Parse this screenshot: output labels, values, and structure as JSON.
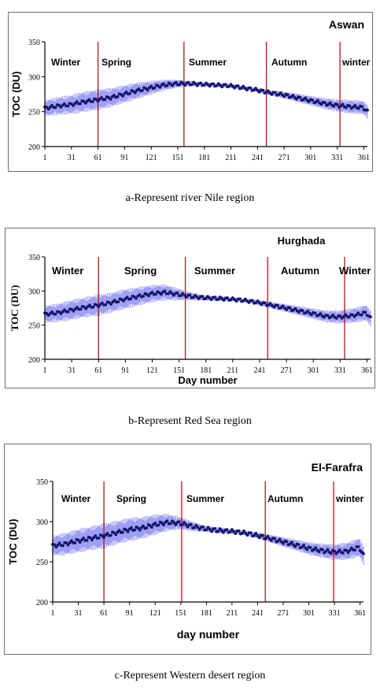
{
  "captions": {
    "a": "a-Represent river Nile region",
    "b": "b-Represent Red Sea region",
    "c": "c-Represent Western desert region"
  },
  "colors": {
    "error_band": "#8c8cf2",
    "mean_points": "#14146b",
    "season_lines": "#b01818",
    "axis": "#000000"
  },
  "chart_data": [
    {
      "type": "line",
      "title": "Aswan",
      "xlabel": "",
      "ylabel": "TOC (DU)",
      "xlim": [
        1,
        365
      ],
      "ylim": [
        200,
        350
      ],
      "x_ticks": [
        1,
        31,
        61,
        91,
        121,
        151,
        181,
        211,
        241,
        271,
        301,
        331,
        361
      ],
      "y_ticks": [
        200,
        250,
        300,
        350
      ],
      "season_boundaries": [
        61,
        158,
        251,
        334
      ],
      "seasons": [
        "Winter",
        "Spring",
        "Summer",
        "Autumn",
        "winter"
      ],
      "series": [
        {
          "x": [
            1,
            15,
            30,
            45,
            60,
            75,
            90,
            105,
            120,
            135,
            150,
            165,
            180,
            195,
            210,
            225,
            240,
            255,
            270,
            285,
            300,
            315,
            330,
            345,
            360,
            365
          ],
          "y": [
            255,
            258,
            260,
            264,
            267,
            270,
            275,
            280,
            284,
            288,
            290,
            290,
            289,
            288,
            287,
            284,
            281,
            277,
            274,
            270,
            266,
            262,
            259,
            257,
            256,
            250
          ],
          "error": [
            12,
            13,
            14,
            15,
            15,
            14,
            13,
            12,
            10,
            8,
            6,
            4,
            3,
            3,
            3,
            3,
            3,
            4,
            5,
            6,
            7,
            8,
            9,
            10,
            10,
            10
          ]
        }
      ]
    },
    {
      "type": "line",
      "title": "Hurghada",
      "xlabel": "Day number",
      "ylabel": "TOC (DU)",
      "xlim": [
        1,
        365
      ],
      "ylim": [
        200,
        350
      ],
      "x_ticks": [
        1,
        31,
        61,
        91,
        121,
        151,
        181,
        211,
        241,
        271,
        301,
        331,
        361
      ],
      "y_ticks": [
        200,
        250,
        300,
        350
      ],
      "season_boundaries": [
        61,
        158,
        250,
        336
      ],
      "seasons": [
        "Winter",
        "Spring",
        "Summer",
        "Autumn",
        "Winter"
      ],
      "series": [
        {
          "x": [
            1,
            15,
            30,
            45,
            60,
            75,
            90,
            105,
            120,
            135,
            150,
            165,
            180,
            195,
            210,
            225,
            240,
            255,
            270,
            285,
            300,
            315,
            330,
            345,
            360,
            365
          ],
          "y": [
            266,
            268,
            272,
            276,
            279,
            283,
            288,
            292,
            296,
            298,
            295,
            292,
            290,
            289,
            288,
            286,
            283,
            279,
            275,
            271,
            267,
            263,
            262,
            264,
            268,
            260
          ],
          "error": [
            13,
            14,
            15,
            15,
            16,
            15,
            15,
            14,
            13,
            12,
            9,
            6,
            4,
            4,
            3,
            3,
            4,
            5,
            6,
            7,
            8,
            9,
            10,
            11,
            12,
            12
          ]
        }
      ]
    },
    {
      "type": "line",
      "title": "El-Farafra",
      "xlabel": "day number",
      "ylabel": "TOC (DU)",
      "xlim": [
        1,
        365
      ],
      "ylim": [
        200,
        350
      ],
      "x_ticks": [
        1,
        31,
        61,
        91,
        121,
        151,
        181,
        211,
        241,
        271,
        301,
        331,
        361
      ],
      "y_ticks": [
        200,
        250,
        300,
        350
      ],
      "season_boundaries": [
        61,
        152,
        250,
        330
      ],
      "seasons": [
        "Winter",
        "Spring",
        "Summer",
        "Autumn",
        "winter"
      ],
      "series": [
        {
          "x": [
            1,
            15,
            30,
            45,
            60,
            75,
            90,
            105,
            120,
            135,
            150,
            165,
            180,
            195,
            210,
            225,
            240,
            255,
            270,
            285,
            300,
            315,
            330,
            345,
            360,
            365
          ],
          "y": [
            270,
            272,
            276,
            279,
            282,
            286,
            290,
            292,
            296,
            299,
            298,
            294,
            291,
            289,
            288,
            286,
            283,
            279,
            275,
            271,
            267,
            264,
            262,
            263,
            268,
            258
          ],
          "error": [
            13,
            14,
            15,
            15,
            16,
            15,
            15,
            14,
            13,
            11,
            8,
            6,
            4,
            4,
            3,
            3,
            4,
            5,
            6,
            7,
            8,
            9,
            10,
            11,
            12,
            12
          ]
        }
      ]
    }
  ]
}
